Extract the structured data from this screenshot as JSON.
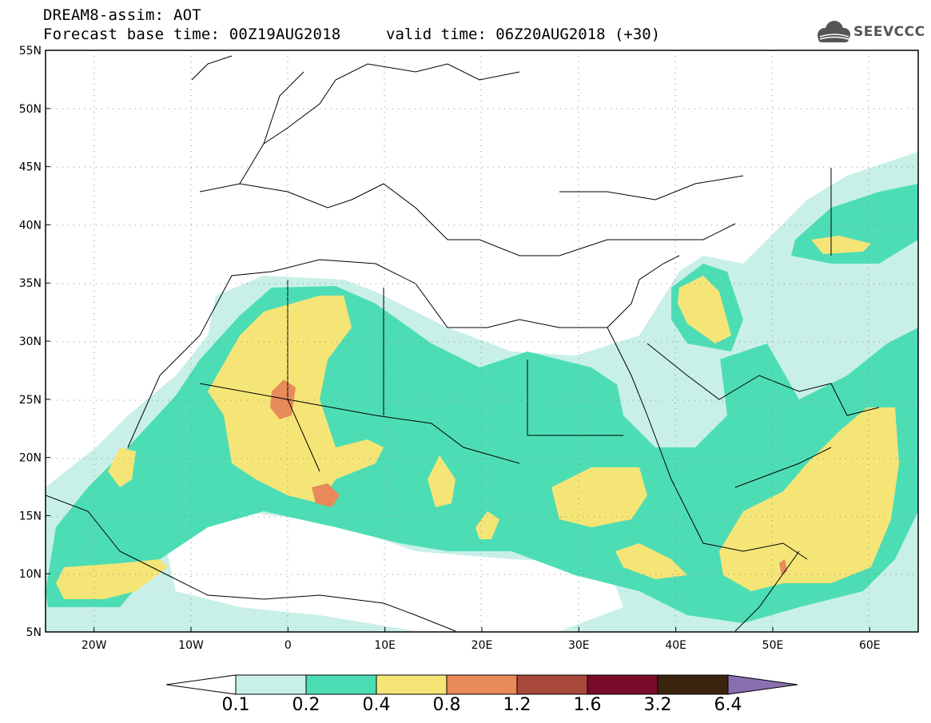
{
  "header": {
    "line1": "DREAM8-assim: AOT",
    "line2_left": "Forecast base time: 00Z19AUG2018",
    "line2_right": "valid time: 06Z20AUG2018 (+30)"
  },
  "logo": {
    "text": "SEEVCCC",
    "icon": "cloud-logo-icon"
  },
  "map": {
    "lon_range": [
      -25,
      65
    ],
    "lat_range": [
      5,
      55
    ],
    "grid": true,
    "lat_labels": [
      "55N",
      "50N",
      "45N",
      "40N",
      "35N",
      "30N",
      "25N",
      "20N",
      "15N",
      "10N",
      "5N"
    ],
    "lon_labels": [
      "20W",
      "10W",
      "0",
      "10E",
      "20E",
      "30E",
      "40E",
      "50E",
      "60E"
    ]
  },
  "colorbar": {
    "labels": [
      "0.1",
      "0.2",
      "0.4",
      "0.8",
      "1.2",
      "1.6",
      "3.2",
      "6.4"
    ],
    "colors": [
      "#ffffff",
      "#c8f0e8",
      "#4dddb5",
      "#f5e577",
      "#e88a5a",
      "#a9493c",
      "#7a0a2a",
      "#3a2410",
      "#8a6fb0"
    ]
  }
}
